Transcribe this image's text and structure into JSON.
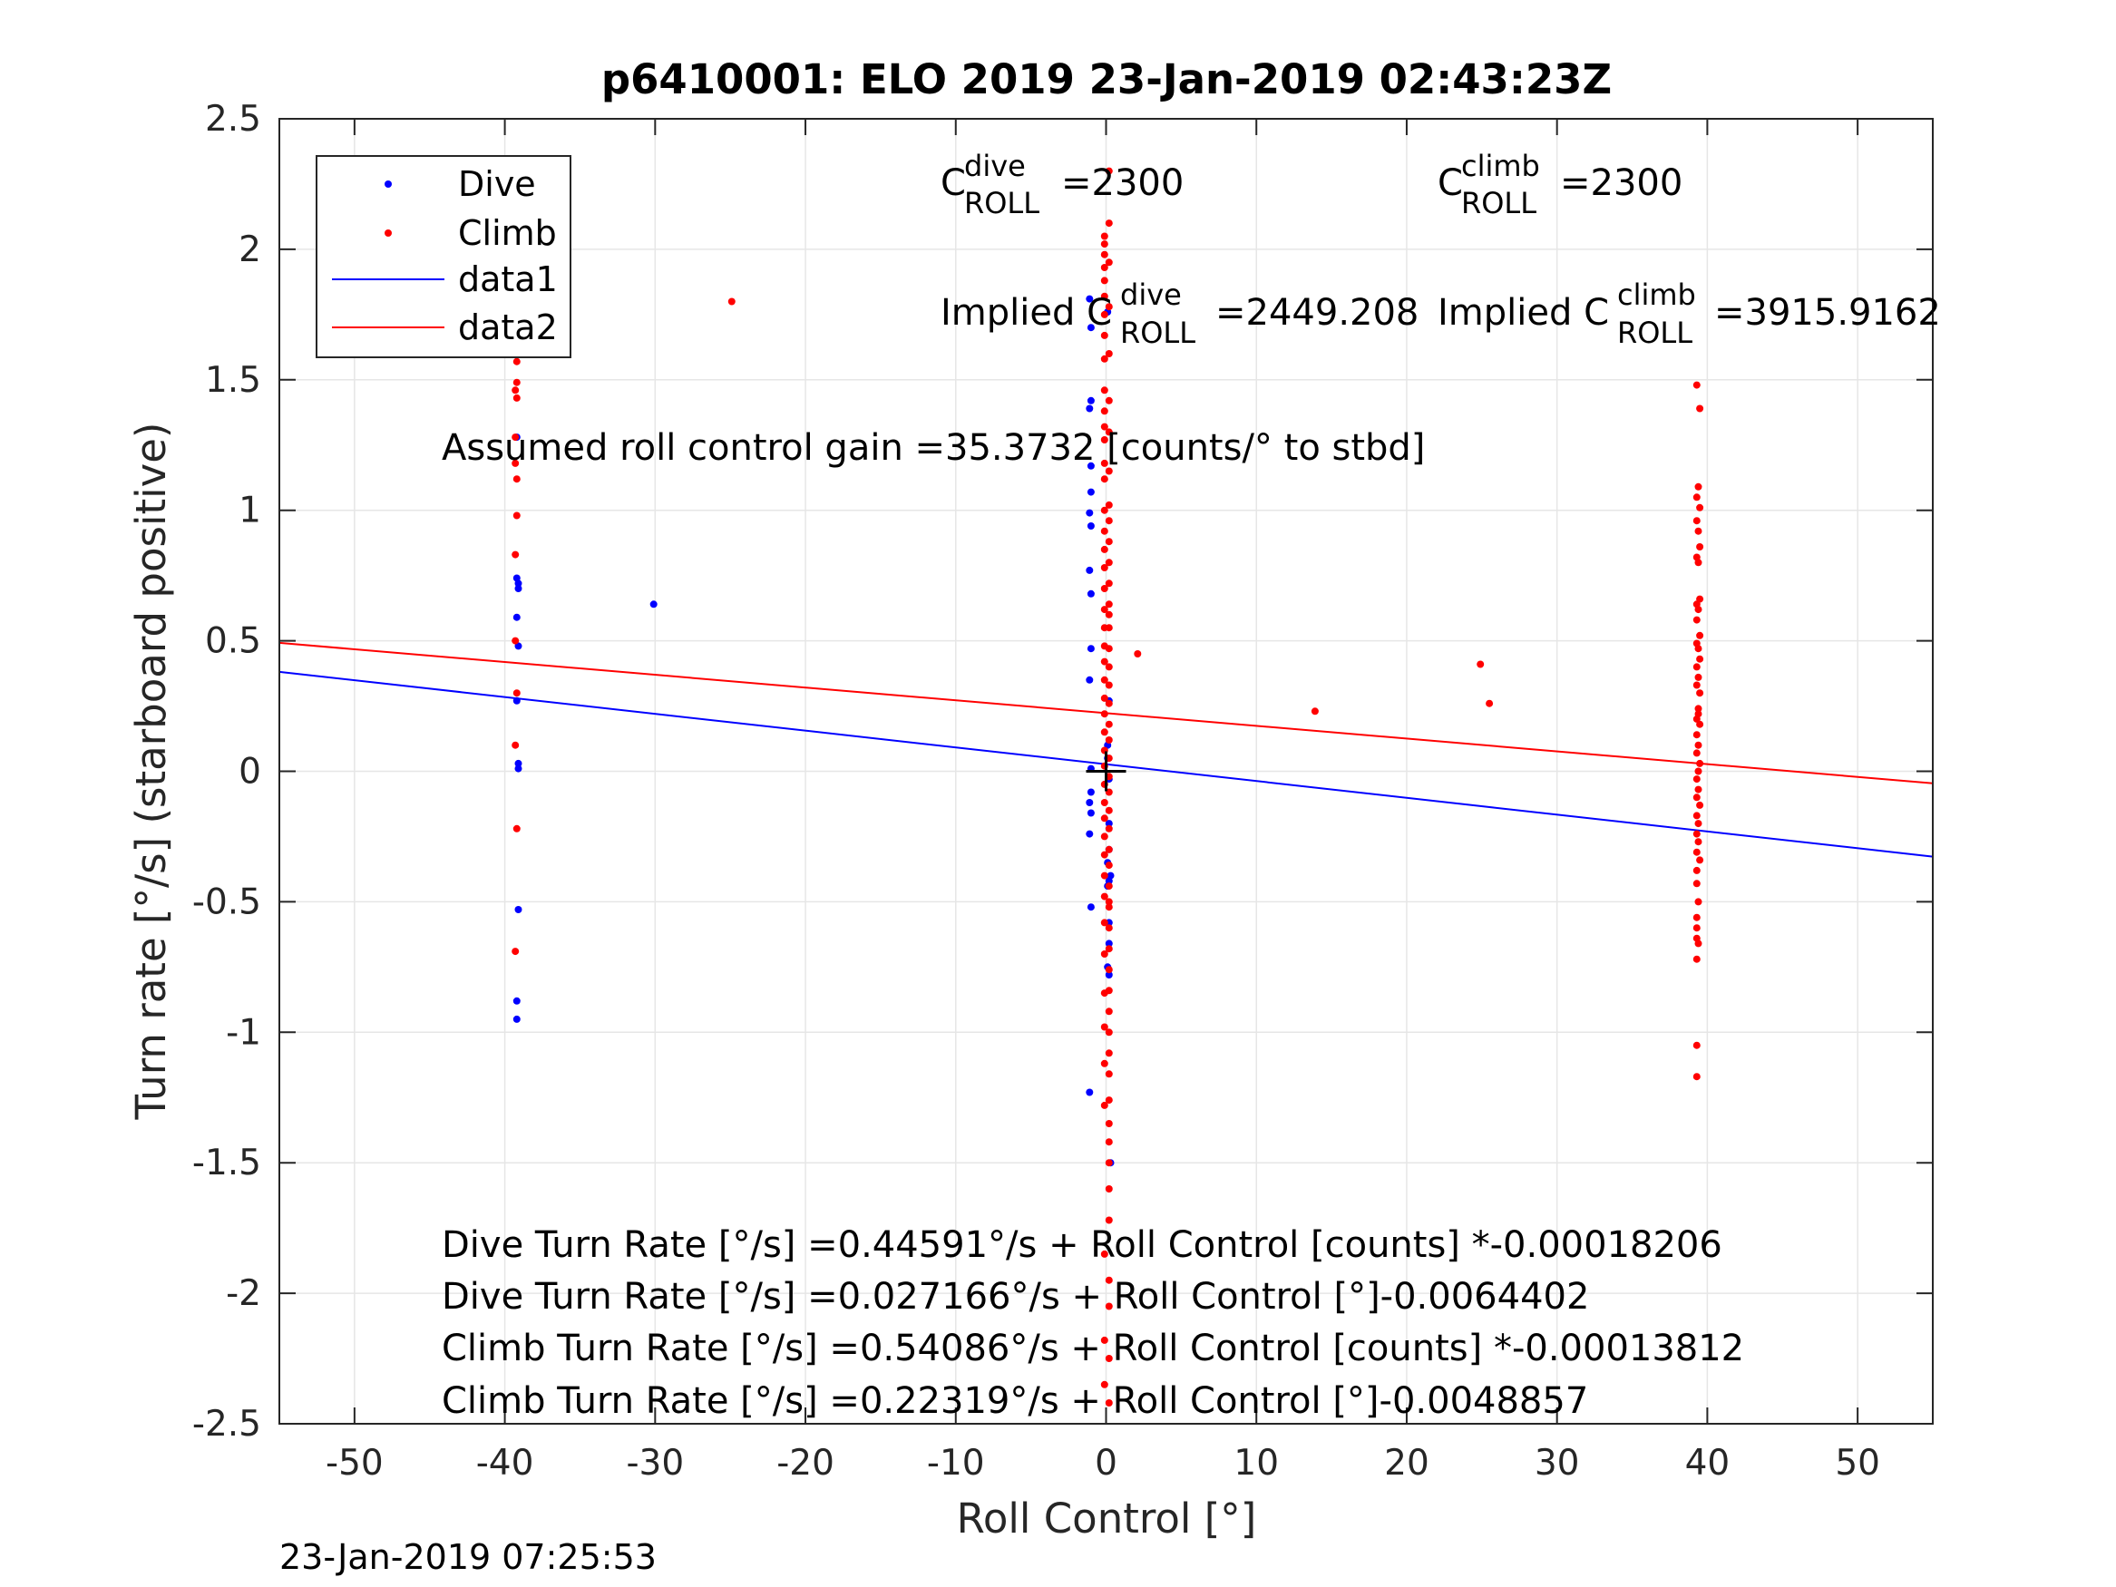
{
  "footer_timestamp": "23-Jan-2019 07:25:53",
  "annotations": {
    "c_dive_label_main": "C",
    "c_dive_label_sup": "dive",
    "c_dive_label_sub": "ROLL",
    "c_dive_value": "=2300",
    "c_climb_label_main": "C",
    "c_climb_label_sup": "climb",
    "c_climb_label_sub": "ROLL",
    "c_climb_value": "=2300",
    "implied_dive_prefix": "Implied C",
    "implied_dive_sup": "dive",
    "implied_dive_sub": "ROLL",
    "implied_dive_value": "=2449.208",
    "implied_climb_prefix": "Implied C",
    "implied_climb_sup": "climb",
    "implied_climb_sub": "ROLL",
    "implied_climb_value": "=3915.9162",
    "gain": "Assumed roll control gain =35.3732 [counts/° to stbd]",
    "fit_lines": [
      "Dive Turn Rate [°/s] =0.44591°/s + Roll Control [counts] *-0.00018206",
      "Dive Turn Rate [°/s] =0.027166°/s + Roll Control [°]-0.0064402",
      "Climb Turn Rate [°/s] =0.54086°/s + Roll Control [counts] *-0.00013812",
      "Climb Turn Rate [°/s] =0.22319°/s + Roll Control [°]-0.0048857"
    ]
  },
  "colors": {
    "dive": "#0000ff",
    "climb": "#ff0000",
    "data1": "#0000ff",
    "data2": "#ff0000",
    "grid": "#e6e6e6",
    "axis": "#262626"
  },
  "chart_data": {
    "type": "scatter",
    "title": "p6410001: ELO 2019 23-Jan-2019 02:43:23Z",
    "xlabel": "Roll Control [°]",
    "ylabel": "Turn rate [°/s] (starboard positive)",
    "xlim": [
      -55,
      55
    ],
    "ylim": [
      -2.5,
      2.5
    ],
    "xticks": [
      -50,
      -40,
      -30,
      -20,
      -10,
      0,
      10,
      20,
      30,
      40,
      50
    ],
    "xtick_labels": [
      "-50",
      "-40",
      "-30",
      "-20",
      "-10",
      "0",
      "10",
      "20",
      "30",
      "40",
      "50"
    ],
    "yticks": [
      -2.5,
      -2,
      -1.5,
      -1,
      -0.5,
      0,
      0.5,
      1,
      1.5,
      2,
      2.5
    ],
    "ytick_labels": [
      "-2.5",
      "-2",
      "-1.5",
      "-1",
      "-0.5",
      "0",
      "0.5",
      "1",
      "1.5",
      "2",
      "2.5"
    ],
    "grid": true,
    "legend_position": "top-left",
    "marker": {
      "x": 0,
      "y": 0,
      "symbol": "+"
    },
    "series": [
      {
        "name": "Dive",
        "kind": "points",
        "x": [
          -39.2,
          -39.2,
          -39.1,
          -39.2,
          -39.1,
          -39.2,
          -39.1,
          -39.1,
          -39.1,
          -39.2,
          -39.2,
          -39.1,
          -30.1,
          -1.1,
          -1.0,
          -1.0,
          -1.1,
          -1.0,
          -1.0,
          -1.1,
          -1.0,
          -1.1,
          -1.0,
          -1.0,
          -1.1,
          -1.0,
          -1.0,
          -1.1,
          -1.0,
          -1.1,
          -1.0,
          -1.1,
          0.1,
          0.2,
          0.1,
          0.2,
          0.1,
          0.2,
          0.1,
          0.2,
          0.2,
          0.1,
          0.2,
          0.3,
          0.2,
          0.1,
          0.2,
          0.3
        ],
        "y": [
          1.28,
          0.74,
          0.72,
          0.59,
          0.48,
          0.27,
          0.03,
          0.01,
          -0.53,
          -0.88,
          -0.95,
          0.7,
          0.64,
          1.81,
          1.7,
          1.42,
          1.39,
          1.17,
          1.07,
          0.99,
          0.94,
          0.77,
          0.68,
          0.47,
          0.35,
          0.01,
          -0.08,
          -0.12,
          -0.16,
          -0.24,
          -0.52,
          -1.23,
          1.76,
          0.27,
          0.05,
          -0.03,
          -0.35,
          -0.42,
          -0.44,
          -0.58,
          -0.66,
          -0.75,
          -0.78,
          -1.5,
          -0.2,
          0.1,
          -0.3,
          -0.4
        ]
      },
      {
        "name": "Climb",
        "kind": "points",
        "x": [
          -39.3,
          -39.2,
          -39.3,
          -39.2,
          -39.3,
          -39.2,
          -39.3,
          -39.2,
          -39.2,
          -39.3,
          -39.2,
          -39.3,
          -39.2,
          -39.2,
          -39.3,
          -39.3,
          -39.2,
          -39.3,
          -39.2,
          -39.3,
          -39.3,
          -24.9,
          2.1,
          13.9,
          24.9,
          25.5,
          -0.1,
          -0.1,
          -0.1,
          -0.1,
          -0.1,
          -0.1,
          -0.1,
          -0.1,
          -0.1,
          -0.1,
          -0.1,
          -0.1,
          -0.1,
          -0.1,
          -0.1,
          -0.1,
          -0.1,
          -0.1,
          -0.1,
          -0.1,
          -0.1,
          -0.1,
          -0.1,
          -0.1,
          -0.1,
          -0.1,
          -0.1,
          -0.1,
          -0.1,
          -0.1,
          -0.1,
          -0.1,
          -0.1,
          -0.1,
          -0.1,
          -0.1,
          -0.1,
          -0.1,
          -0.1,
          -0.1,
          -0.1,
          -0.1,
          -0.1,
          -0.1,
          -0.1,
          -0.1,
          0.2,
          0.2,
          0.2,
          0.2,
          0.2,
          0.2,
          0.2,
          0.2,
          0.2,
          0.2,
          0.2,
          0.2,
          0.2,
          0.2,
          0.2,
          0.2,
          0.2,
          0.2,
          0.2,
          0.2,
          0.2,
          0.2,
          0.2,
          0.2,
          0.2,
          0.2,
          0.2,
          0.2,
          0.2,
          0.2,
          0.2,
          0.2,
          0.2,
          0.2,
          0.2,
          0.2,
          0.2,
          0.2,
          0.2,
          0.2,
          0.2,
          0.2,
          0.2,
          0.2,
          0.2,
          0.2,
          0.2,
          0.2,
          0.2,
          0.2,
          39.3,
          39.5,
          39.4,
          39.3,
          39.5,
          39.3,
          39.4,
          39.5,
          39.3,
          39.4,
          39.5,
          39.3,
          39.4,
          39.5,
          39.3,
          39.4,
          39.5,
          39.3,
          39.4,
          39.3,
          39.5,
          39.4,
          39.3,
          39.5,
          39.3,
          39.4,
          39.3,
          39.5,
          39.4,
          39.3,
          39.4,
          39.3,
          39.5,
          39.3,
          39.4,
          39.3,
          39.4,
          39.3,
          39.5,
          39.3,
          39.3,
          39.4,
          39.3,
          39.3,
          39.3,
          39.4,
          39.3,
          39.3,
          39.3,
          39.3,
          39.4
        ],
        "y": [
          2.0,
          1.96,
          1.86,
          1.82,
          1.78,
          1.7,
          1.64,
          1.57,
          1.49,
          1.46,
          1.43,
          1.28,
          1.12,
          0.98,
          0.83,
          0.5,
          0.3,
          0.1,
          -0.22,
          -0.69,
          1.18,
          1.8,
          0.45,
          0.23,
          0.41,
          0.26,
          2.05,
          2.02,
          1.98,
          1.93,
          1.88,
          1.82,
          1.75,
          1.67,
          1.58,
          1.46,
          1.38,
          1.32,
          1.27,
          1.18,
          1.12,
          1.0,
          0.92,
          0.85,
          0.78,
          0.7,
          0.62,
          0.55,
          0.48,
          0.42,
          0.35,
          0.28,
          0.22,
          0.15,
          0.08,
          0.02,
          -0.05,
          -0.12,
          -0.18,
          -0.25,
          -0.32,
          -0.4,
          -0.48,
          -0.58,
          -0.7,
          -0.85,
          -0.98,
          -1.12,
          -1.28,
          -1.85,
          -2.18,
          -2.35,
          2.3,
          2.1,
          1.95,
          1.78,
          1.6,
          1.42,
          1.3,
          1.15,
          1.02,
          0.96,
          0.88,
          0.8,
          0.72,
          0.64,
          0.55,
          0.47,
          0.4,
          0.33,
          0.26,
          0.18,
          0.12,
          0.05,
          -0.02,
          -0.08,
          -0.15,
          -0.22,
          -0.3,
          -0.36,
          -0.44,
          -0.52,
          -0.6,
          -0.68,
          -0.76,
          -0.84,
          -0.92,
          -1.0,
          -1.08,
          -1.16,
          -1.26,
          -1.35,
          -1.42,
          -1.5,
          -1.6,
          -1.72,
          -1.95,
          -2.05,
          -2.25,
          -2.42,
          -0.5,
          0.6,
          1.48,
          1.39,
          1.09,
          1.05,
          1.01,
          0.96,
          0.92,
          0.86,
          0.82,
          0.8,
          0.66,
          0.64,
          0.62,
          0.52,
          0.49,
          0.47,
          0.43,
          0.4,
          0.36,
          0.33,
          0.3,
          0.24,
          0.2,
          0.18,
          0.14,
          0.1,
          0.07,
          0.03,
          0.0,
          -0.03,
          -0.07,
          -0.1,
          -0.13,
          -0.17,
          -0.2,
          -0.24,
          -0.27,
          -0.31,
          -0.34,
          -0.38,
          -0.43,
          -0.5,
          -0.56,
          -0.6,
          -0.64,
          -0.66,
          -0.72,
          -1.05,
          -1.17,
          0.58,
          0.22
        ]
      },
      {
        "name": "data1",
        "kind": "line",
        "x": [
          -55,
          55
        ],
        "y": [
          0.381,
          -0.327
        ]
      },
      {
        "name": "data2",
        "kind": "line",
        "x": [
          -55,
          55
        ],
        "y": [
          0.492,
          -0.046
        ]
      }
    ]
  }
}
